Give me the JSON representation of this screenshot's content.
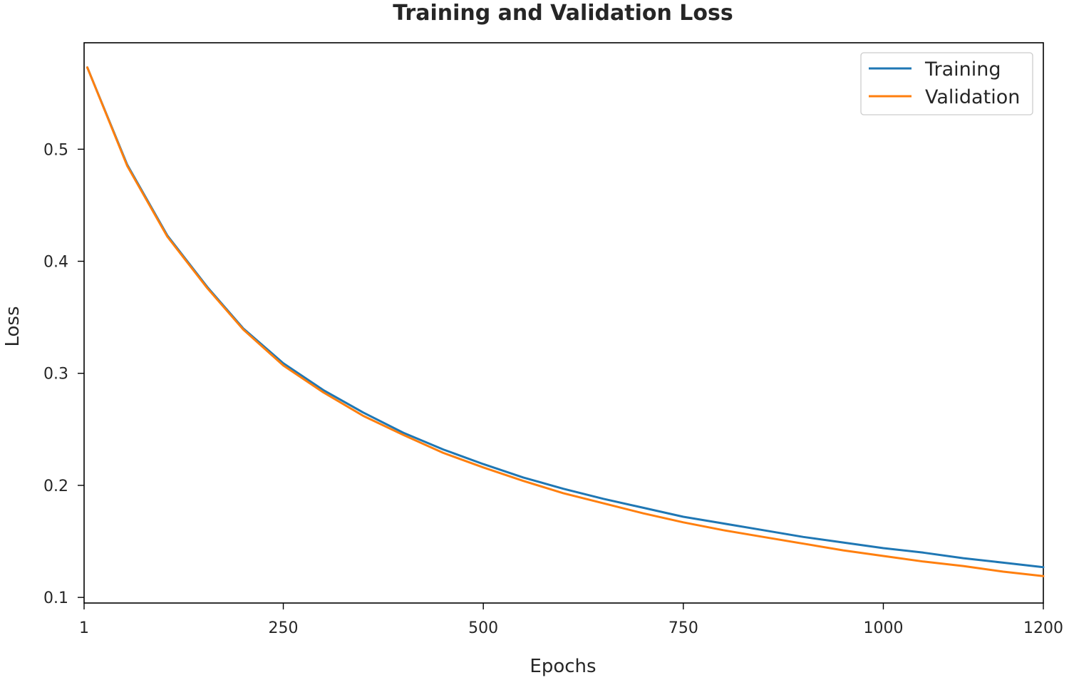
{
  "chart_data": {
    "type": "line",
    "title": "Training and Validation Loss",
    "xlabel": "Epochs",
    "ylabel": "Loss",
    "xlim": [
      1,
      1200
    ],
    "ylim": [
      0.095,
      0.595
    ],
    "xticks": [
      1,
      250,
      500,
      750,
      1000,
      1200
    ],
    "xtick_labels": [
      "1",
      "250",
      "500",
      "750",
      "1000",
      "1200"
    ],
    "yticks": [
      0.1,
      0.2,
      0.3,
      0.4,
      0.5
    ],
    "ytick_labels": [
      "0.1",
      "0.2",
      "0.3",
      "0.4",
      "0.5"
    ],
    "grid": false,
    "legend_position": "top-right",
    "x": [
      5,
      55,
      105,
      155,
      200,
      250,
      300,
      350,
      400,
      450,
      500,
      550,
      600,
      650,
      700,
      750,
      800,
      850,
      900,
      950,
      1000,
      1050,
      1100,
      1150,
      1200
    ],
    "series": [
      {
        "name": "Training",
        "color": "#1f77b4",
        "values": [
          0.573,
          0.486,
          0.423,
          0.377,
          0.34,
          0.309,
          0.285,
          0.265,
          0.247,
          0.232,
          0.219,
          0.207,
          0.197,
          0.188,
          0.18,
          0.172,
          0.166,
          0.16,
          0.154,
          0.149,
          0.144,
          0.14,
          0.135,
          0.131,
          0.127
        ]
      },
      {
        "name": "Validation",
        "color": "#ff7f0e",
        "values": [
          0.573,
          0.485,
          0.422,
          0.376,
          0.339,
          0.307,
          0.283,
          0.262,
          0.245,
          0.229,
          0.216,
          0.204,
          0.193,
          0.184,
          0.175,
          0.167,
          0.16,
          0.154,
          0.148,
          0.142,
          0.137,
          0.132,
          0.128,
          0.123,
          0.119
        ]
      }
    ]
  }
}
